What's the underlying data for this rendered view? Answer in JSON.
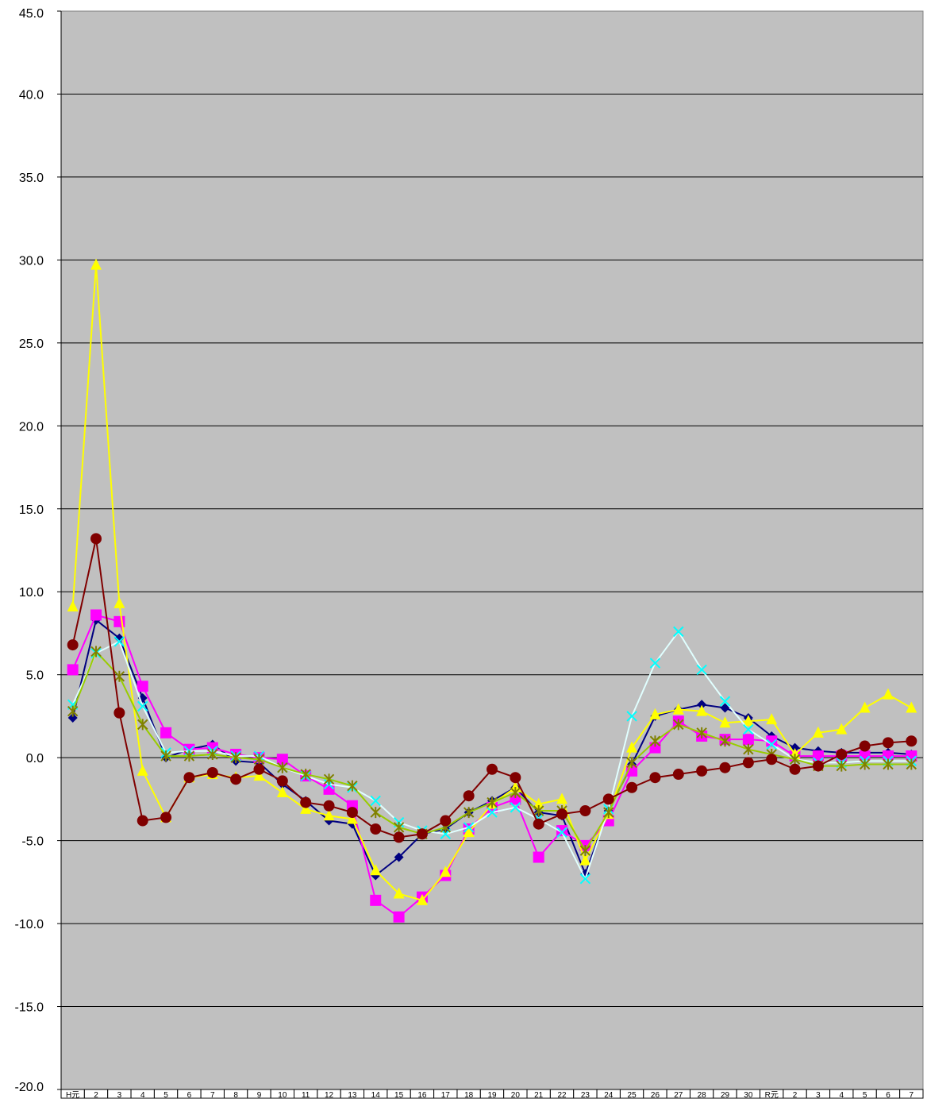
{
  "chart_data": {
    "type": "line",
    "title": "",
    "xlabel": "",
    "ylabel": "",
    "ylim": [
      -20,
      45
    ],
    "yticks": [
      "45.0",
      "40.0",
      "35.0",
      "30.0",
      "25.0",
      "20.0",
      "15.0",
      "10.0",
      "5.0",
      "0.0",
      "-5.0",
      "-10.0",
      "-15.0",
      "-20.0"
    ],
    "ytick_values": [
      45,
      40,
      35,
      30,
      25,
      20,
      15,
      10,
      5,
      0,
      -5,
      -10,
      -15,
      -20
    ],
    "categories": [
      "H元",
      "2",
      "3",
      "4",
      "5",
      "6",
      "7",
      "8",
      "9",
      "10",
      "11",
      "12",
      "13",
      "14",
      "15",
      "16",
      "17",
      "18",
      "19",
      "20",
      "21",
      "22",
      "23",
      "24",
      "25",
      "26",
      "27",
      "28",
      "29",
      "30",
      "R元",
      "2",
      "3",
      "4",
      "5",
      "6",
      "7"
    ],
    "grid": true,
    "plot_background": "#c0c0c0",
    "series": [
      {
        "color": "#000080",
        "marker": "diamond",
        "values": [
          2.4,
          8.3,
          7.2,
          3.6,
          0.0,
          0.5,
          0.8,
          -0.2,
          -0.3,
          -1.6,
          -2.6,
          -3.8,
          -4.0,
          -7.1,
          -6.0,
          -4.6,
          -4.3,
          -3.3,
          -2.6,
          -1.8,
          -3.3,
          -3.5,
          -7.0,
          -3.2,
          -0.4,
          2.5,
          2.9,
          3.2,
          3.0,
          2.4,
          1.3,
          0.6,
          0.4,
          0.3,
          0.3,
          0.3,
          0.2
        ]
      },
      {
        "color": "#ff00ff",
        "marker": "square",
        "values": [
          5.3,
          8.6,
          8.2,
          4.3,
          1.5,
          0.5,
          0.6,
          0.2,
          0.0,
          -0.1,
          -1.1,
          -1.9,
          -2.9,
          -8.6,
          -9.6,
          -8.4,
          -7.1,
          -4.3,
          -3.0,
          -2.5,
          -6.0,
          -4.4,
          -5.3,
          -3.8,
          -0.8,
          0.6,
          2.2,
          1.3,
          1.1,
          1.1,
          1.0,
          0.1,
          0.1,
          0.1,
          0.1,
          0.1,
          0.1
        ]
      },
      {
        "color": "#ffff00",
        "marker": "triangle",
        "values": [
          9.1,
          29.7,
          9.3,
          -0.8,
          -3.6,
          -1.2,
          -1.0,
          -1.2,
          -1.1,
          -2.1,
          -3.1,
          -3.5,
          -3.7,
          -6.8,
          -8.2,
          -8.6,
          -6.9,
          -4.5,
          -2.8,
          -1.8,
          -2.8,
          -2.5,
          -6.2,
          -3.4,
          0.6,
          2.6,
          2.9,
          2.8,
          2.1,
          2.2,
          2.3,
          0.2,
          1.5,
          1.7,
          3.0,
          3.8,
          3.0
        ]
      },
      {
        "color": "#00ffff",
        "marker": "x",
        "line_color": "#e0ffff",
        "values": [
          3.2,
          6.3,
          7.0,
          3.1,
          0.3,
          0.4,
          0.4,
          0.1,
          0.1,
          -0.6,
          -1.1,
          -1.6,
          -1.8,
          -2.6,
          -3.9,
          -4.4,
          -4.6,
          -4.2,
          -3.3,
          -3.0,
          -3.7,
          -4.5,
          -7.3,
          -3.1,
          2.5,
          5.7,
          7.6,
          5.3,
          3.4,
          1.7,
          0.8,
          -0.1,
          -0.3,
          -0.3,
          -0.2,
          -0.2,
          -0.2
        ]
      },
      {
        "color": "#808000",
        "marker": "star",
        "line_color": "#99cc00",
        "values": [
          2.8,
          6.4,
          4.9,
          2.0,
          0.1,
          0.1,
          0.2,
          0.0,
          -0.1,
          -0.6,
          -1.0,
          -1.3,
          -1.7,
          -3.3,
          -4.2,
          -4.6,
          -4.2,
          -3.3,
          -2.7,
          -2.1,
          -3.2,
          -3.2,
          -5.6,
          -3.3,
          -0.3,
          1.0,
          2.0,
          1.5,
          1.0,
          0.5,
          0.2,
          -0.1,
          -0.5,
          -0.5,
          -0.4,
          -0.4,
          -0.4
        ]
      },
      {
        "color": "#800000",
        "marker": "circle",
        "values": [
          6.8,
          13.2,
          2.7,
          -3.8,
          -3.6,
          -1.2,
          -0.9,
          -1.3,
          -0.7,
          -1.4,
          -2.7,
          -2.9,
          -3.3,
          -4.3,
          -4.8,
          -4.6,
          -3.8,
          -2.3,
          -0.7,
          -1.2,
          -4.0,
          -3.4,
          -3.2,
          -2.5,
          -1.8,
          -1.2,
          -1.0,
          -0.8,
          -0.6,
          -0.3,
          -0.1,
          -0.7,
          -0.5,
          0.2,
          0.7,
          0.9,
          1.0
        ]
      }
    ]
  }
}
